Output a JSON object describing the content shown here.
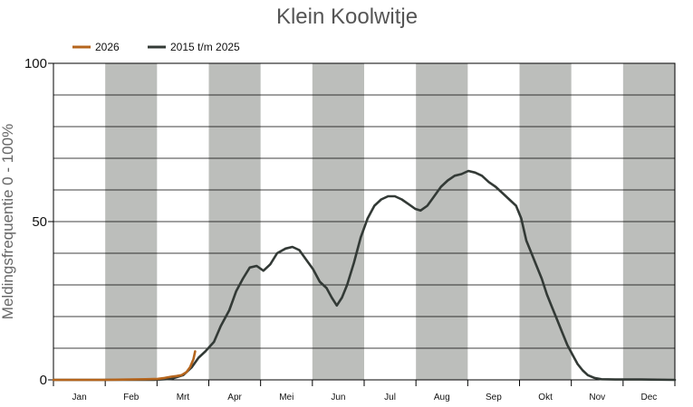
{
  "chart_data": {
    "type": "line",
    "title": "Klein Koolwitje",
    "ylabel": "Meldingsfrequentie 0 - 100%",
    "xlabel": "",
    "ylim": [
      0,
      100
    ],
    "yticks": [
      0,
      50,
      100
    ],
    "grid": true,
    "legend_position": "top-left",
    "months": [
      "Jan",
      "Feb",
      "Mrt",
      "Apr",
      "Mei",
      "Jun",
      "Jul",
      "Aug",
      "Sep",
      "Okt",
      "Nov",
      "Dec"
    ],
    "shaded_months": [
      "Feb",
      "Apr",
      "Jun",
      "Aug",
      "Okt",
      "Dec"
    ],
    "colors": {
      "shade": "#bcbebb",
      "axis": "#000000",
      "grid": "#000000"
    },
    "series": [
      {
        "name": "2015 t/m 2025",
        "color": "#333a36",
        "points": [
          {
            "x": 1,
            "y": 0
          },
          {
            "x": 30,
            "y": 0
          },
          {
            "x": 60,
            "y": 0
          },
          {
            "x": 70,
            "y": 0.3
          },
          {
            "x": 77,
            "y": 1.5
          },
          {
            "x": 82,
            "y": 4
          },
          {
            "x": 86,
            "y": 7
          },
          {
            "x": 90,
            "y": 9
          },
          {
            "x": 95,
            "y": 12
          },
          {
            "x": 99,
            "y": 17
          },
          {
            "x": 104,
            "y": 22
          },
          {
            "x": 108,
            "y": 28
          },
          {
            "x": 112,
            "y": 32
          },
          {
            "x": 116,
            "y": 35.5
          },
          {
            "x": 120,
            "y": 36
          },
          {
            "x": 124,
            "y": 34.5
          },
          {
            "x": 128,
            "y": 36.5
          },
          {
            "x": 132,
            "y": 40
          },
          {
            "x": 137,
            "y": 41.5
          },
          {
            "x": 141,
            "y": 42
          },
          {
            "x": 145,
            "y": 41
          },
          {
            "x": 149,
            "y": 38
          },
          {
            "x": 153,
            "y": 35
          },
          {
            "x": 157,
            "y": 31
          },
          {
            "x": 161,
            "y": 29
          },
          {
            "x": 164,
            "y": 26
          },
          {
            "x": 167,
            "y": 23.5
          },
          {
            "x": 170,
            "y": 26
          },
          {
            "x": 173,
            "y": 30
          },
          {
            "x": 177,
            "y": 37
          },
          {
            "x": 181,
            "y": 45
          },
          {
            "x": 185,
            "y": 51
          },
          {
            "x": 189,
            "y": 55
          },
          {
            "x": 193,
            "y": 57
          },
          {
            "x": 197,
            "y": 58
          },
          {
            "x": 201,
            "y": 58
          },
          {
            "x": 205,
            "y": 57
          },
          {
            "x": 209,
            "y": 55.5
          },
          {
            "x": 213,
            "y": 54
          },
          {
            "x": 216,
            "y": 53.5
          },
          {
            "x": 220,
            "y": 55
          },
          {
            "x": 224,
            "y": 58
          },
          {
            "x": 228,
            "y": 61
          },
          {
            "x": 232,
            "y": 63
          },
          {
            "x": 236,
            "y": 64.5
          },
          {
            "x": 240,
            "y": 65
          },
          {
            "x": 244,
            "y": 66
          },
          {
            "x": 248,
            "y": 65.5
          },
          {
            "x": 252,
            "y": 64.5
          },
          {
            "x": 256,
            "y": 62.5
          },
          {
            "x": 260,
            "y": 61
          },
          {
            "x": 264,
            "y": 59
          },
          {
            "x": 268,
            "y": 57
          },
          {
            "x": 272,
            "y": 55
          },
          {
            "x": 275,
            "y": 51
          },
          {
            "x": 278,
            "y": 44
          },
          {
            "x": 281,
            "y": 40
          },
          {
            "x": 284,
            "y": 36
          },
          {
            "x": 287,
            "y": 32
          },
          {
            "x": 290,
            "y": 27
          },
          {
            "x": 293,
            "y": 23
          },
          {
            "x": 296,
            "y": 19
          },
          {
            "x": 299,
            "y": 15
          },
          {
            "x": 302,
            "y": 11
          },
          {
            "x": 305,
            "y": 8
          },
          {
            "x": 308,
            "y": 5
          },
          {
            "x": 311,
            "y": 3
          },
          {
            "x": 314,
            "y": 1.5
          },
          {
            "x": 318,
            "y": 0.6
          },
          {
            "x": 322,
            "y": 0.2
          },
          {
            "x": 330,
            "y": 0.1
          },
          {
            "x": 345,
            "y": 0.1
          },
          {
            "x": 365,
            "y": 0
          }
        ]
      },
      {
        "name": "2026",
        "color": "#b5651d",
        "points": [
          {
            "x": 1,
            "y": 0
          },
          {
            "x": 30,
            "y": 0
          },
          {
            "x": 55,
            "y": 0.2
          },
          {
            "x": 62,
            "y": 0.3
          },
          {
            "x": 66,
            "y": 0.6
          },
          {
            "x": 70,
            "y": 1
          },
          {
            "x": 73,
            "y": 1.2
          },
          {
            "x": 76,
            "y": 1.5
          },
          {
            "x": 79,
            "y": 2.5
          },
          {
            "x": 81,
            "y": 4
          },
          {
            "x": 83,
            "y": 6.5
          },
          {
            "x": 84,
            "y": 9
          }
        ]
      }
    ]
  }
}
